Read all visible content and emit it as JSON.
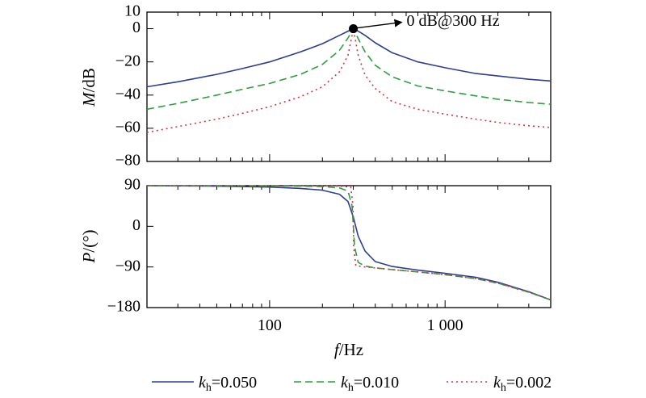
{
  "chart_data": [
    {
      "type": "line",
      "id": "magnitude",
      "ylabel_italic": "M",
      "ylabel_rest": "/dB",
      "xscale": "log",
      "xlim": [
        20,
        4000
      ],
      "ylim": [
        -80,
        10
      ],
      "ytick_labels": [
        "10",
        "0",
        "−20",
        "−40",
        "−60",
        "−80"
      ],
      "ytick_values": [
        10,
        0,
        -20,
        -40,
        -60,
        -80
      ],
      "annotation": {
        "text": "0 dB@300 Hz",
        "x": 300,
        "y": 0
      },
      "series": [
        {
          "label_var": "k",
          "label_sub": "h",
          "label_value": "=0.050",
          "color": "#2c3e91",
          "dash": "",
          "x": [
            20,
            30,
            50,
            70,
            100,
            150,
            200,
            250,
            280,
            300,
            320,
            350,
            400,
            500,
            700,
            1000,
            1500,
            2000,
            3000,
            4000
          ],
          "y": [
            -35,
            -32,
            -27.5,
            -24,
            -20,
            -14,
            -9,
            -4,
            -1.5,
            0,
            -1.5,
            -4,
            -8.5,
            -14.5,
            -20,
            -23.5,
            -27,
            -28.5,
            -30.5,
            -31.5
          ]
        },
        {
          "label_var": "k",
          "label_sub": "h",
          "label_value": "=0.010",
          "color": "#2e9e3e",
          "dash": "9,5",
          "x": [
            20,
            30,
            50,
            70,
            100,
            150,
            200,
            250,
            280,
            300,
            320,
            350,
            400,
            500,
            700,
            1000,
            1500,
            2000,
            3000,
            4000
          ],
          "y": [
            -48.5,
            -45,
            -40,
            -36.5,
            -33,
            -27.5,
            -21.5,
            -13,
            -5.5,
            0,
            -6,
            -14,
            -22,
            -29,
            -34.5,
            -37.5,
            -40.5,
            -42.5,
            -44.5,
            -45.5
          ]
        },
        {
          "label_var": "k",
          "label_sub": "h",
          "label_value": "=0.002",
          "color": "#d2334a",
          "dash": "2,4",
          "x": [
            20,
            30,
            50,
            70,
            100,
            150,
            200,
            250,
            280,
            300,
            320,
            350,
            400,
            500,
            700,
            1000,
            1500,
            2000,
            3000,
            4000
          ],
          "y": [
            -62.5,
            -59,
            -54.5,
            -51,
            -47,
            -41,
            -35,
            -26,
            -16,
            0,
            -16,
            -28,
            -36,
            -44,
            -48.5,
            -51.5,
            -54.5,
            -56.5,
            -58.5,
            -59.5
          ]
        }
      ]
    },
    {
      "type": "line",
      "id": "phase",
      "ylabel_italic": "P",
      "ylabel_rest": "/(°)",
      "xscale": "log",
      "xlim": [
        20,
        4000
      ],
      "ylim": [
        -180,
        90
      ],
      "ytick_labels": [
        "90",
        "0",
        "−90",
        "−180"
      ],
      "ytick_values": [
        90,
        0,
        -90,
        -180
      ],
      "xtick_labels": [
        "100",
        "1 000"
      ],
      "xtick_values": [
        100,
        1000
      ],
      "xlabel_italic": "f",
      "xlabel_rest": "/Hz",
      "series": [
        {
          "color": "#2c3e91",
          "dash": "",
          "x": [
            20,
            50,
            100,
            150,
            200,
            250,
            280,
            300,
            320,
            350,
            400,
            500,
            700,
            1000,
            1500,
            2000,
            3000,
            4000
          ],
          "y": [
            90,
            89,
            87,
            84,
            80,
            71,
            55,
            20,
            -22,
            -55,
            -78,
            -89,
            -97,
            -104,
            -113,
            -124,
            -145,
            -163
          ]
        },
        {
          "color": "#2e9e3e",
          "dash": "9,5",
          "x": [
            20,
            50,
            100,
            150,
            200,
            250,
            280,
            295,
            300,
            305,
            320,
            350,
            400,
            500,
            700,
            1000,
            1500,
            2000,
            3000,
            4000
          ],
          "y": [
            90,
            90,
            89.5,
            89,
            88,
            85,
            78,
            45,
            0,
            -45,
            -80,
            -88,
            -92,
            -96,
            -101,
            -107,
            -116,
            -126,
            -146,
            -163
          ]
        },
        {
          "color": "#d2334a",
          "dash": "2,4",
          "x": [
            20,
            50,
            100,
            150,
            200,
            250,
            290,
            299,
            300,
            301,
            310,
            350,
            400,
            500,
            700,
            1000,
            1500,
            2000,
            3000,
            4000
          ],
          "y": [
            90,
            90,
            90,
            90,
            90,
            89,
            87,
            45,
            0,
            -45,
            -87,
            -90,
            -92,
            -96,
            -101,
            -107,
            -116,
            -126,
            -146,
            -163
          ]
        }
      ]
    }
  ]
}
